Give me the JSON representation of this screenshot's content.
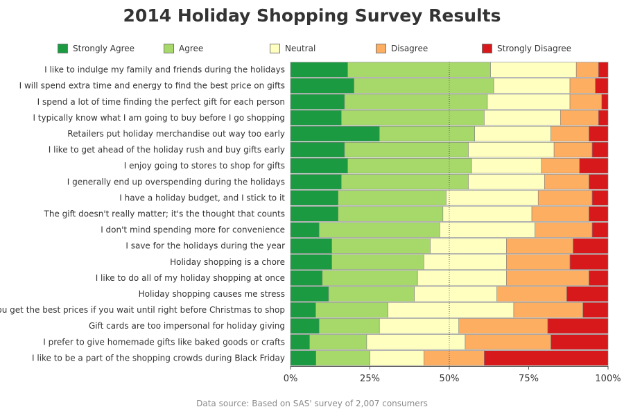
{
  "chart_data": {
    "type": "bar",
    "orientation": "horizontal",
    "stacked": "percent",
    "title": "2014 Holiday Shopping Survey Results",
    "source_note": "Data source: Based on SAS' survey of 2,007 consumers",
    "xlim": [
      0,
      100
    ],
    "x_ticks": [
      "0%",
      "25%",
      "50%",
      "75%",
      "100%"
    ],
    "reference_line": 50,
    "legend_position": "top",
    "categories": [
      "I like to indulge my family and friends during the holidays",
      "I will spend extra time and energy to find the best price on gifts",
      "I spend a lot of time finding the perfect gift for each person",
      "I typically know what I am going to buy before I go shopping",
      "Retailers put holiday merchandise out way too early",
      "I like to get ahead of the holiday rush and buy gifts early",
      "I enjoy going to stores to shop for gifts",
      "I generally end up overspending during the holidays",
      "I have a holiday budget, and I stick to it",
      "The gift doesn't really matter; it's the thought that counts",
      "I don't mind spending more for convenience",
      "I save for the holidays during the year",
      "Holiday shopping is a chore",
      "I like to do all of my holiday shopping at once",
      "Holiday shopping causes me stress",
      "You get the best prices if you wait until right before Christmas to shop",
      "Gift cards are too impersonal for holiday giving",
      "I prefer to give homemade gifts like baked goods or crafts",
      "I like to be a part of the shopping crowds during Black Friday"
    ],
    "series": [
      {
        "name": "Strongly Agree",
        "color": "#1b9a42",
        "values": [
          18,
          20,
          17,
          16,
          28,
          17,
          18,
          16,
          15,
          15,
          9,
          13,
          13,
          10,
          12,
          8,
          9,
          6,
          8
        ]
      },
      {
        "name": "Agree",
        "color": "#a6d96a",
        "values": [
          45,
          44,
          45,
          45,
          30,
          39,
          39,
          40,
          34,
          33,
          38,
          31,
          29,
          30,
          27,
          23,
          19,
          18,
          17
        ]
      },
      {
        "name": "Neutral",
        "color": "#ffffbf",
        "values": [
          27,
          24,
          26,
          24,
          24,
          27,
          22,
          24,
          29,
          28,
          30,
          24,
          26,
          28,
          26,
          40,
          25,
          31,
          17
        ]
      },
      {
        "name": "Disagree",
        "color": "#fdae61",
        "values": [
          7,
          8,
          10,
          12,
          12,
          12,
          12,
          14,
          17,
          18,
          18,
          21,
          20,
          26,
          22,
          22,
          28,
          27,
          19
        ]
      },
      {
        "name": "Strongly Disagree",
        "color": "#d7191c",
        "values": [
          3,
          4,
          2,
          3,
          6,
          5,
          9,
          6,
          5,
          6,
          5,
          11,
          12,
          6,
          13,
          8,
          19,
          18,
          39
        ]
      }
    ]
  }
}
